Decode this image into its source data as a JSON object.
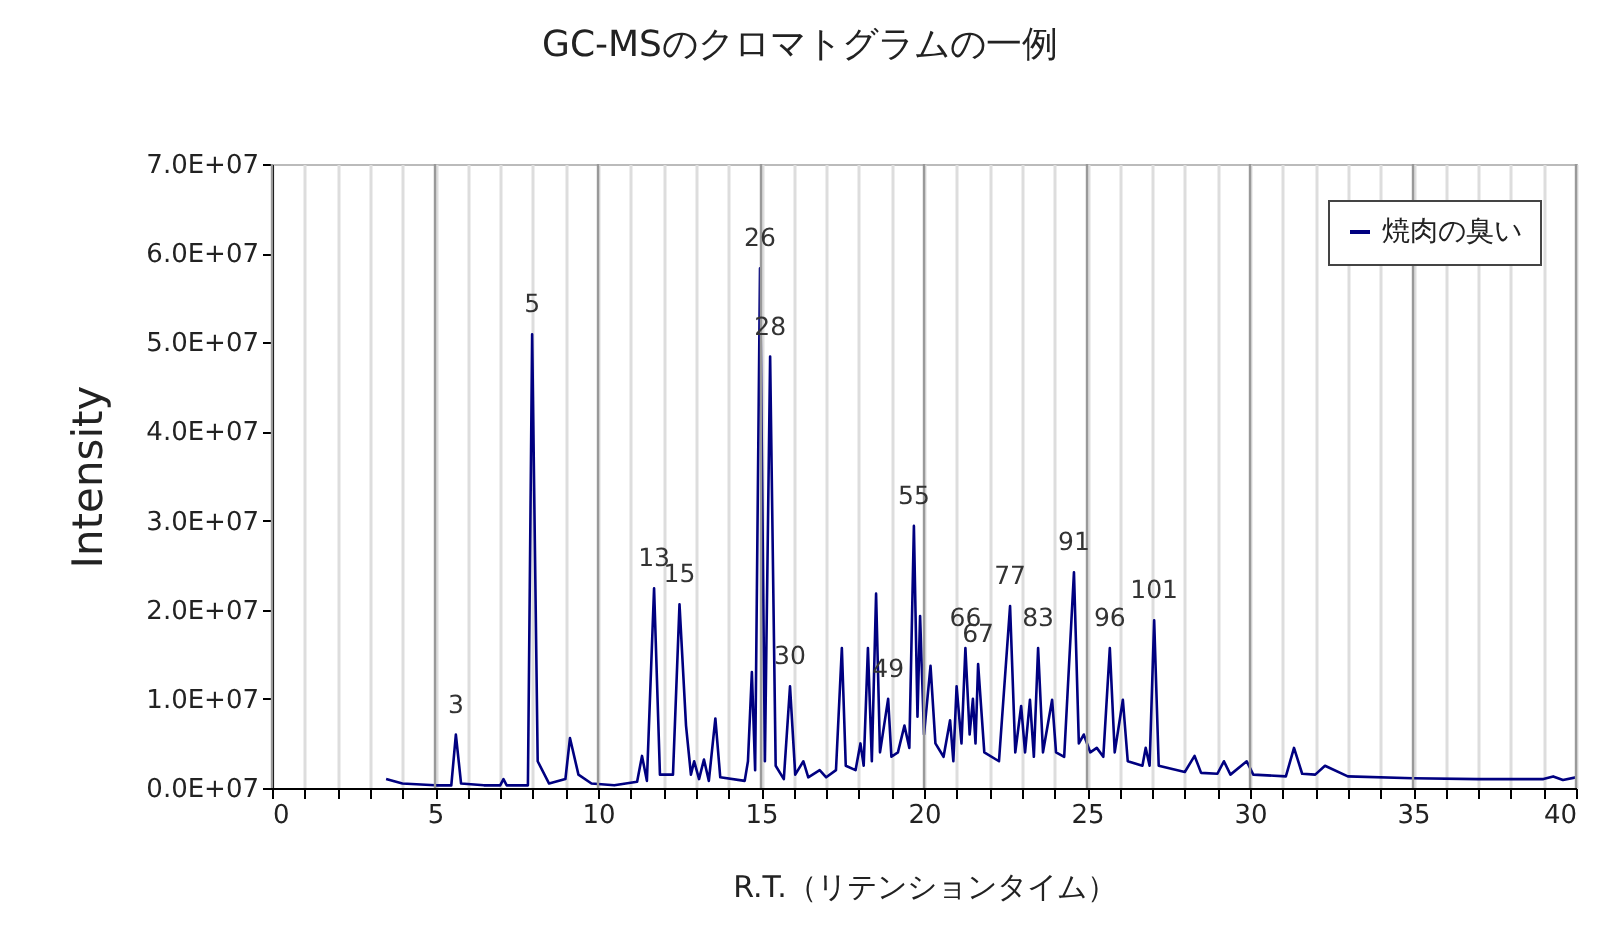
{
  "chart_data": {
    "type": "line",
    "title": "GC-MSのクロマトグラムの一例",
    "xlabel": "R.T.（リテンションタイム）",
    "ylabel": "Intensity",
    "xlim": [
      0,
      40
    ],
    "xticks": [
      0,
      {
        "value": 1,
        "label": null
      },
      {
        "value": 2,
        "label": null
      },
      {
        "value": 3,
        "label": null
      },
      {
        "value": 4,
        "label": null
      },
      5,
      {
        "value": 6,
        "label": null
      },
      {
        "value": 7,
        "label": null
      },
      {
        "value": 8,
        "label": null
      },
      {
        "value": 9,
        "label": null
      },
      10,
      {
        "value": 11,
        "label": null
      },
      {
        "value": 12,
        "label": null
      },
      {
        "value": 13,
        "label": null
      },
      {
        "value": 14,
        "label": null
      },
      15,
      {
        "value": 16,
        "label": null
      },
      {
        "value": 17,
        "label": null
      },
      {
        "value": 18,
        "label": null
      },
      {
        "value": 19,
        "label": null
      },
      20,
      {
        "value": 21,
        "label": null
      },
      {
        "value": 22,
        "label": null
      },
      {
        "value": 23,
        "label": null
      },
      {
        "value": 24,
        "label": null
      },
      25,
      {
        "value": 26,
        "label": null
      },
      {
        "value": 27,
        "label": null
      },
      {
        "value": 28,
        "label": null
      },
      {
        "value": 29,
        "label": null
      },
      30,
      {
        "value": 31,
        "label": null
      },
      {
        "value": 32,
        "label": null
      },
      {
        "value": 33,
        "label": null
      },
      {
        "value": 34,
        "label": null
      },
      35,
      {
        "value": 36,
        "label": null
      },
      {
        "value": 37,
        "label": null
      },
      {
        "value": 38,
        "label": null
      },
      {
        "value": 39,
        "label": null
      },
      40
    ],
    "ylim": [
      0,
      70000000
    ],
    "yticks": [
      {
        "value": 0,
        "label": "0.0E+07"
      },
      {
        "value": 10000000,
        "label": "1.0E+07"
      },
      {
        "value": 20000000,
        "label": "2.0E+07"
      },
      {
        "value": 30000000,
        "label": "3.0E+07"
      },
      {
        "value": 40000000,
        "label": "4.0E+07"
      },
      {
        "value": 50000000,
        "label": "5.0E+07"
      },
      {
        "value": 60000000,
        "label": "6.0E+07"
      },
      {
        "value": 70000000,
        "label": "7.0E+07"
      }
    ],
    "grid": "x",
    "legend": "top right",
    "marker": "none",
    "line_style": "solid",
    "x": [
      3.5,
      4.0,
      5.0,
      5.5,
      5.64,
      5.8,
      6.5,
      7.0,
      7.1,
      7.2,
      7.85,
      7.98,
      8.15,
      8.5,
      9.0,
      9.14,
      9.4,
      9.8,
      10.5,
      11.2,
      11.35,
      11.5,
      11.72,
      11.9,
      12.3,
      12.5,
      12.7,
      12.85,
      12.95,
      13.1,
      13.25,
      13.4,
      13.6,
      13.75,
      14.5,
      14.6,
      14.72,
      14.82,
      14.97,
      15.12,
      15.28,
      15.45,
      15.7,
      15.89,
      16.05,
      16.3,
      16.45,
      16.8,
      17.0,
      17.3,
      17.48,
      17.6,
      17.9,
      18.05,
      18.15,
      18.28,
      18.4,
      18.53,
      18.65,
      18.9,
      19.0,
      19.2,
      19.4,
      19.55,
      19.69,
      19.8,
      19.88,
      20.0,
      20.2,
      20.35,
      20.6,
      20.8,
      20.9,
      21.0,
      21.15,
      21.27,
      21.4,
      21.5,
      21.58,
      21.66,
      21.85,
      22.3,
      22.64,
      22.8,
      22.98,
      23.1,
      23.25,
      23.37,
      23.5,
      23.65,
      23.93,
      24.05,
      24.3,
      24.6,
      24.75,
      24.9,
      25.1,
      25.3,
      25.5,
      25.7,
      25.85,
      26.1,
      26.25,
      26.7,
      26.8,
      26.92,
      27.06,
      27.2,
      28.0,
      28.3,
      28.5,
      29.0,
      29.2,
      29.4,
      29.9,
      30.1,
      31.1,
      31.35,
      31.6,
      32.0,
      32.3,
      33.0,
      35.0,
      37.0,
      39.0,
      39.3,
      39.6,
      40.0
    ],
    "series": [
      {
        "name": "焼肉の臭い",
        "color": "#000080",
        "values": [
          1000000,
          500000,
          300000,
          300000,
          6000000,
          500000,
          300000,
          300000,
          1000000,
          300000,
          300000,
          50900000,
          3000000,
          500000,
          1000000,
          5600000,
          1500000,
          500000,
          300000,
          700000,
          3600000,
          800000,
          22400000,
          1500000,
          1500000,
          20600000,
          7000000,
          1500000,
          3000000,
          1000000,
          3200000,
          800000,
          7800000,
          1200000,
          800000,
          3000000,
          13000000,
          2000000,
          58300000,
          3000000,
          48400000,
          2500000,
          1000000,
          11400000,
          1500000,
          3000000,
          1200000,
          2000000,
          1200000,
          2000000,
          15700000,
          2500000,
          2000000,
          5000000,
          2500000,
          15700000,
          3000000,
          21800000,
          4000000,
          10000000,
          3500000,
          4000000,
          7000000,
          4500000,
          29400000,
          8000000,
          19300000,
          6000000,
          13700000,
          5000000,
          3500000,
          7600000,
          3000000,
          11400000,
          5000000,
          15700000,
          6000000,
          10000000,
          5000000,
          13900000,
          4000000,
          3000000,
          20400000,
          4000000,
          9200000,
          4000000,
          9900000,
          3500000,
          15700000,
          4000000,
          9900000,
          4000000,
          3500000,
          24200000,
          5000000,
          6000000,
          4000000,
          4500000,
          3500000,
          15700000,
          4000000,
          9900000,
          3000000,
          2500000,
          4500000,
          2500000,
          18800000,
          2500000,
          1800000,
          3600000,
          1700000,
          1600000,
          3000000,
          1500000,
          3000000,
          1500000,
          1300000,
          4500000,
          1600000,
          1500000,
          2500000,
          1300000,
          1100000,
          1000000,
          1000000,
          1300000,
          900000,
          1200000
        ]
      }
    ],
    "annotations": [
      {
        "text": "3",
        "x": 5.64,
        "y": 6000000
      },
      {
        "text": "5",
        "x": 7.98,
        "y": 50900000
      },
      {
        "text": "13",
        "x": 11.72,
        "y": 22400000
      },
      {
        "text": "15",
        "x": 12.5,
        "y": 20600000
      },
      {
        "text": "26",
        "x": 14.97,
        "y": 58300000
      },
      {
        "text": "28",
        "x": 15.28,
        "y": 48400000
      },
      {
        "text": "30",
        "x": 15.89,
        "y": 11400000
      },
      {
        "text": "49",
        "x": 18.9,
        "y": 10000000
      },
      {
        "text": "55",
        "x": 19.69,
        "y": 29400000
      },
      {
        "text": "66",
        "x": 21.27,
        "y": 15700000
      },
      {
        "text": "67",
        "x": 21.66,
        "y": 13900000
      },
      {
        "text": "77",
        "x": 22.64,
        "y": 20400000
      },
      {
        "text": "83",
        "x": 23.5,
        "y": 15700000
      },
      {
        "text": "91",
        "x": 24.6,
        "y": 24200000
      },
      {
        "text": "96",
        "x": 25.7,
        "y": 15700000
      },
      {
        "text": "101",
        "x": 27.06,
        "y": 18800000
      }
    ]
  }
}
